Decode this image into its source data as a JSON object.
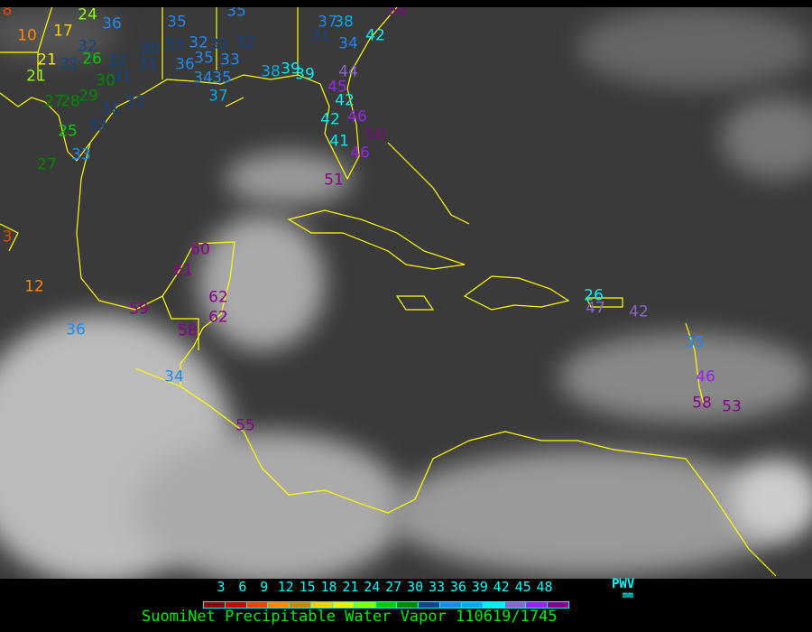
{
  "title": "SuomiNet Precipitable Water Vapor 110619/1745",
  "legend": {
    "label": "PWV",
    "unit": "mm",
    "ticks": [
      "3",
      "6",
      "9",
      "12",
      "15",
      "18",
      "21",
      "24",
      "27",
      "30",
      "33",
      "36",
      "39",
      "42",
      "45",
      "48"
    ],
    "colors": [
      "#8b0000",
      "#cc0000",
      "#ee4400",
      "#ff8800",
      "#cc8800",
      "#ffcc00",
      "#eeee00",
      "#88ff00",
      "#00cc00",
      "#008800",
      "#114488",
      "#2288ee",
      "#00aaee",
      "#00eeee",
      "#8866cc",
      "#9922ee",
      "#880088"
    ]
  },
  "colors": {
    "coastline": "#ffff00",
    "background": "#000000",
    "legend_text": "#00ffff",
    "title_text": "#00ee00"
  },
  "stations": [
    {
      "value": "8",
      "color": "#ee4400"
    },
    {
      "value": "10",
      "color": "#ff8800"
    },
    {
      "value": "17",
      "color": "#ffcc00"
    },
    {
      "value": "24",
      "color": "#88ff00"
    },
    {
      "value": "21",
      "color": "#eeee00"
    },
    {
      "value": "21",
      "color": "#88ff00"
    },
    {
      "value": "32",
      "color": "#114488"
    },
    {
      "value": "26",
      "color": "#00cc00"
    },
    {
      "value": "31",
      "color": "#114488"
    },
    {
      "value": "32",
      "color": "#114488"
    },
    {
      "value": "30",
      "color": "#008800"
    },
    {
      "value": "31",
      "color": "#114488"
    },
    {
      "value": "27",
      "color": "#008800"
    },
    {
      "value": "28",
      "color": "#008800"
    },
    {
      "value": "29",
      "color": "#008800"
    },
    {
      "value": "31",
      "color": "#114488"
    },
    {
      "value": "32",
      "color": "#114488"
    },
    {
      "value": "25",
      "color": "#00cc00"
    },
    {
      "value": "32",
      "color": "#114488"
    },
    {
      "value": "33",
      "color": "#2288ee"
    },
    {
      "value": "27",
      "color": "#008800"
    },
    {
      "value": "35",
      "color": "#2288ee"
    },
    {
      "value": "35",
      "color": "#2288ee"
    },
    {
      "value": "36",
      "color": "#2288ee"
    },
    {
      "value": "30",
      "color": "#114488"
    },
    {
      "value": "33",
      "color": "#114488"
    },
    {
      "value": "32",
      "color": "#2288ee"
    },
    {
      "value": "32",
      "color": "#114488"
    },
    {
      "value": "32",
      "color": "#114488"
    },
    {
      "value": "35",
      "color": "#2288ee"
    },
    {
      "value": "33",
      "color": "#2288ee"
    },
    {
      "value": "31",
      "color": "#114488"
    },
    {
      "value": "36",
      "color": "#2288ee"
    },
    {
      "value": "34",
      "color": "#2288ee"
    },
    {
      "value": "35",
      "color": "#2288ee"
    },
    {
      "value": "37",
      "color": "#00aaee"
    },
    {
      "value": "38",
      "color": "#00aaee"
    },
    {
      "value": "39",
      "color": "#00eeee"
    },
    {
      "value": "39",
      "color": "#00eeee"
    },
    {
      "value": "37",
      "color": "#2288ee"
    },
    {
      "value": "38",
      "color": "#00aaee"
    },
    {
      "value": "31",
      "color": "#114488"
    },
    {
      "value": "34",
      "color": "#2288ee"
    },
    {
      "value": "42",
      "color": "#00eeee"
    },
    {
      "value": "44",
      "color": "#8866cc"
    },
    {
      "value": "45",
      "color": "#9922ee"
    },
    {
      "value": "42",
      "color": "#00eeee"
    },
    {
      "value": "46",
      "color": "#9922ee"
    },
    {
      "value": "42",
      "color": "#00eeee"
    },
    {
      "value": "50",
      "color": "#880088"
    },
    {
      "value": "41",
      "color": "#00eeee"
    },
    {
      "value": "46",
      "color": "#9922ee"
    },
    {
      "value": "51",
      "color": "#880088"
    },
    {
      "value": "56",
      "color": "#880088"
    },
    {
      "value": "60",
      "color": "#880088"
    },
    {
      "value": "61",
      "color": "#880088"
    },
    {
      "value": "62",
      "color": "#880088"
    },
    {
      "value": "62",
      "color": "#880088"
    },
    {
      "value": "59",
      "color": "#880088"
    },
    {
      "value": "58",
      "color": "#880088"
    },
    {
      "value": "34",
      "color": "#2288ee"
    },
    {
      "value": "55",
      "color": "#880088"
    },
    {
      "value": "36",
      "color": "#2288ee"
    },
    {
      "value": "12",
      "color": "#ff8800"
    },
    {
      "value": "3",
      "color": "#ee4400"
    },
    {
      "value": "26",
      "color": "#00eeee"
    },
    {
      "value": "47",
      "color": "#8866cc"
    },
    {
      "value": "42",
      "color": "#8866cc"
    },
    {
      "value": "35",
      "color": "#2288ee"
    },
    {
      "value": "46",
      "color": "#9922ee"
    },
    {
      "value": "58",
      "color": "#880088"
    },
    {
      "value": "53",
      "color": "#880088"
    }
  ]
}
